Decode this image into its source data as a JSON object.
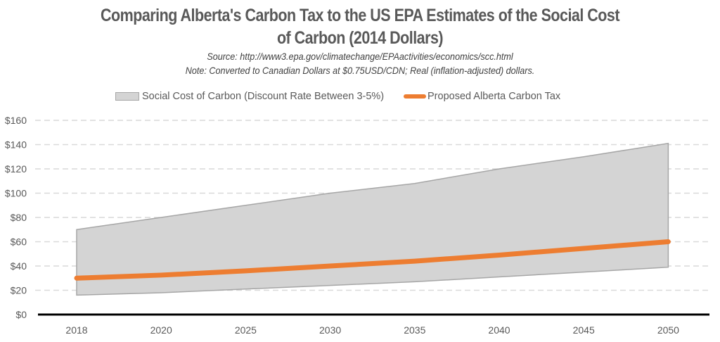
{
  "chart_data": {
    "type": "area",
    "title": "Comparing Alberta's Carbon Tax to the US EPA Estimates of the Social Cost of Carbon (2014 Dollars)",
    "title_lines": [
      "Comparing Alberta's Carbon Tax to the US EPA Estimates of the Social Cost",
      "of Carbon (2014 Dollars)"
    ],
    "subtitle_lines": [
      "Source: http://www3.epa.gov/climatechange/EPAactivities/economics/scc.html",
      "Note: Converted to Canadian Dollars at $0.75USD/CDN; Real (inflation-adjusted) dollars."
    ],
    "xlabel": "",
    "ylabel": "",
    "categories": [
      "2018",
      "2020",
      "2025",
      "2030",
      "2035",
      "2040",
      "2045",
      "2050"
    ],
    "series": [
      {
        "name": "Social Cost of Carbon (Discount Rate Between 3-5%)",
        "type": "range-area",
        "color": "#d4d4d4",
        "border_color": "#a6a6a6",
        "low": [
          16,
          18,
          21,
          24,
          27,
          31,
          35,
          39
        ],
        "high": [
          70,
          80,
          90,
          100,
          108,
          120,
          130,
          141
        ]
      },
      {
        "name": "Proposed Alberta Carbon Tax",
        "type": "line",
        "color": "#ed7d31",
        "values": [
          30,
          32.5,
          36,
          40,
          44,
          49,
          54.5,
          60
        ]
      }
    ],
    "ylim": [
      0,
      160
    ],
    "yticks": [
      0,
      20,
      40,
      60,
      80,
      100,
      120,
      140,
      160
    ],
    "ytick_labels": [
      "$0",
      "$20",
      "$40",
      "$60",
      "$80",
      "$100",
      "$120",
      "$140",
      "$160"
    ],
    "grid": true,
    "grid_style": "dashed",
    "grid_color": "#d9d9d9",
    "legend_position": "top"
  }
}
